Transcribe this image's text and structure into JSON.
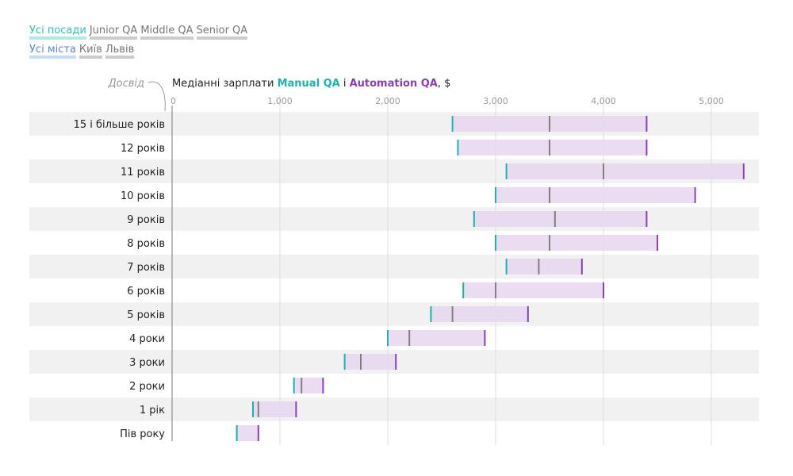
{
  "filters": {
    "positions": [
      "Усі посади",
      "Junior QA",
      "Middle QA",
      "Senior QA"
    ],
    "positions_selected": 0,
    "cities": [
      "Усі міста",
      "Київ",
      "Львів"
    ],
    "cities_selected": 0
  },
  "colors": {
    "manual": "#1ab5aa",
    "automation": "#8a3fb8",
    "median": "#808080",
    "bar_fill": "#e6d7ef"
  },
  "chart_data": {
    "type": "range-bar",
    "title_prefix": "Медіанні зарплати ",
    "title_and": " і ",
    "title_suffix": ", $",
    "ylabel": "Досвід",
    "xlim": [
      0,
      5400
    ],
    "xticks": [
      0,
      1000,
      2000,
      3000,
      4000,
      5000
    ],
    "xtick_labels": [
      "0",
      "1,000",
      "2,000",
      "3,000",
      "4,000",
      "5,000"
    ],
    "grid": true,
    "categories": [
      "15 і більше років",
      "12 років",
      "11 років",
      "10 років",
      "9 років",
      "8 років",
      "7 років",
      "6 років",
      "5 років",
      "4 роки",
      "3 роки",
      "2 роки",
      "1 рік",
      "Пів року"
    ],
    "series": [
      {
        "name": "Manual QA",
        "values": [
          2600,
          2650,
          3100,
          3000,
          2800,
          3000,
          3100,
          2700,
          2400,
          2000,
          1600,
          1130,
          750,
          600
        ]
      },
      {
        "values": [
          3500,
          3500,
          4000,
          3500,
          3550,
          3500,
          3400,
          3000,
          2600,
          2200,
          1750,
          1200,
          800,
          null
        ]
      },
      {
        "name": "Automation QA",
        "values": [
          4400,
          4400,
          5300,
          4850,
          4400,
          4500,
          3800,
          4000,
          3300,
          2900,
          2075,
          1400,
          1150,
          800
        ]
      }
    ]
  }
}
